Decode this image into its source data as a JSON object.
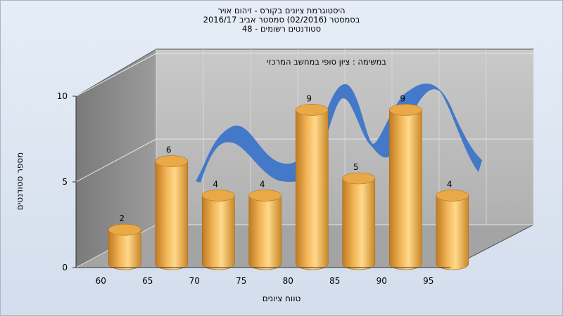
{
  "chart_data": {
    "type": "bar",
    "title_lines": [
      "היסטוגרמת ציונים בקורס - זיהום אויר",
      "בסמסטר  (02/2016)  סמסטר אביב 2016/17",
      "סטודנטים רשומים - 48"
    ],
    "subtitle": "במשימה : ציון סופי במחשב המרכזי",
    "xlabel": "טווח ציונים",
    "ylabel": "מספר סטודנטים",
    "categories": [
      "60",
      "65",
      "70",
      "75",
      "80",
      "85",
      "90",
      "95"
    ],
    "series": [
      {
        "values": [
          2,
          6,
          4,
          4,
          9,
          5,
          9,
          4
        ]
      }
    ],
    "y_ticks": [
      "0",
      "5",
      "10"
    ],
    "ylim": [
      0,
      10
    ],
    "grid": true,
    "colors": {
      "bar": "#e9a947",
      "bar_light": "#ffd98c",
      "bar_dark": "#b8761f",
      "line": "#3c75c8",
      "back_wall": "#b9b9b9",
      "side_wall": "#8e8e8e",
      "floor": "#a4a4a4"
    }
  }
}
